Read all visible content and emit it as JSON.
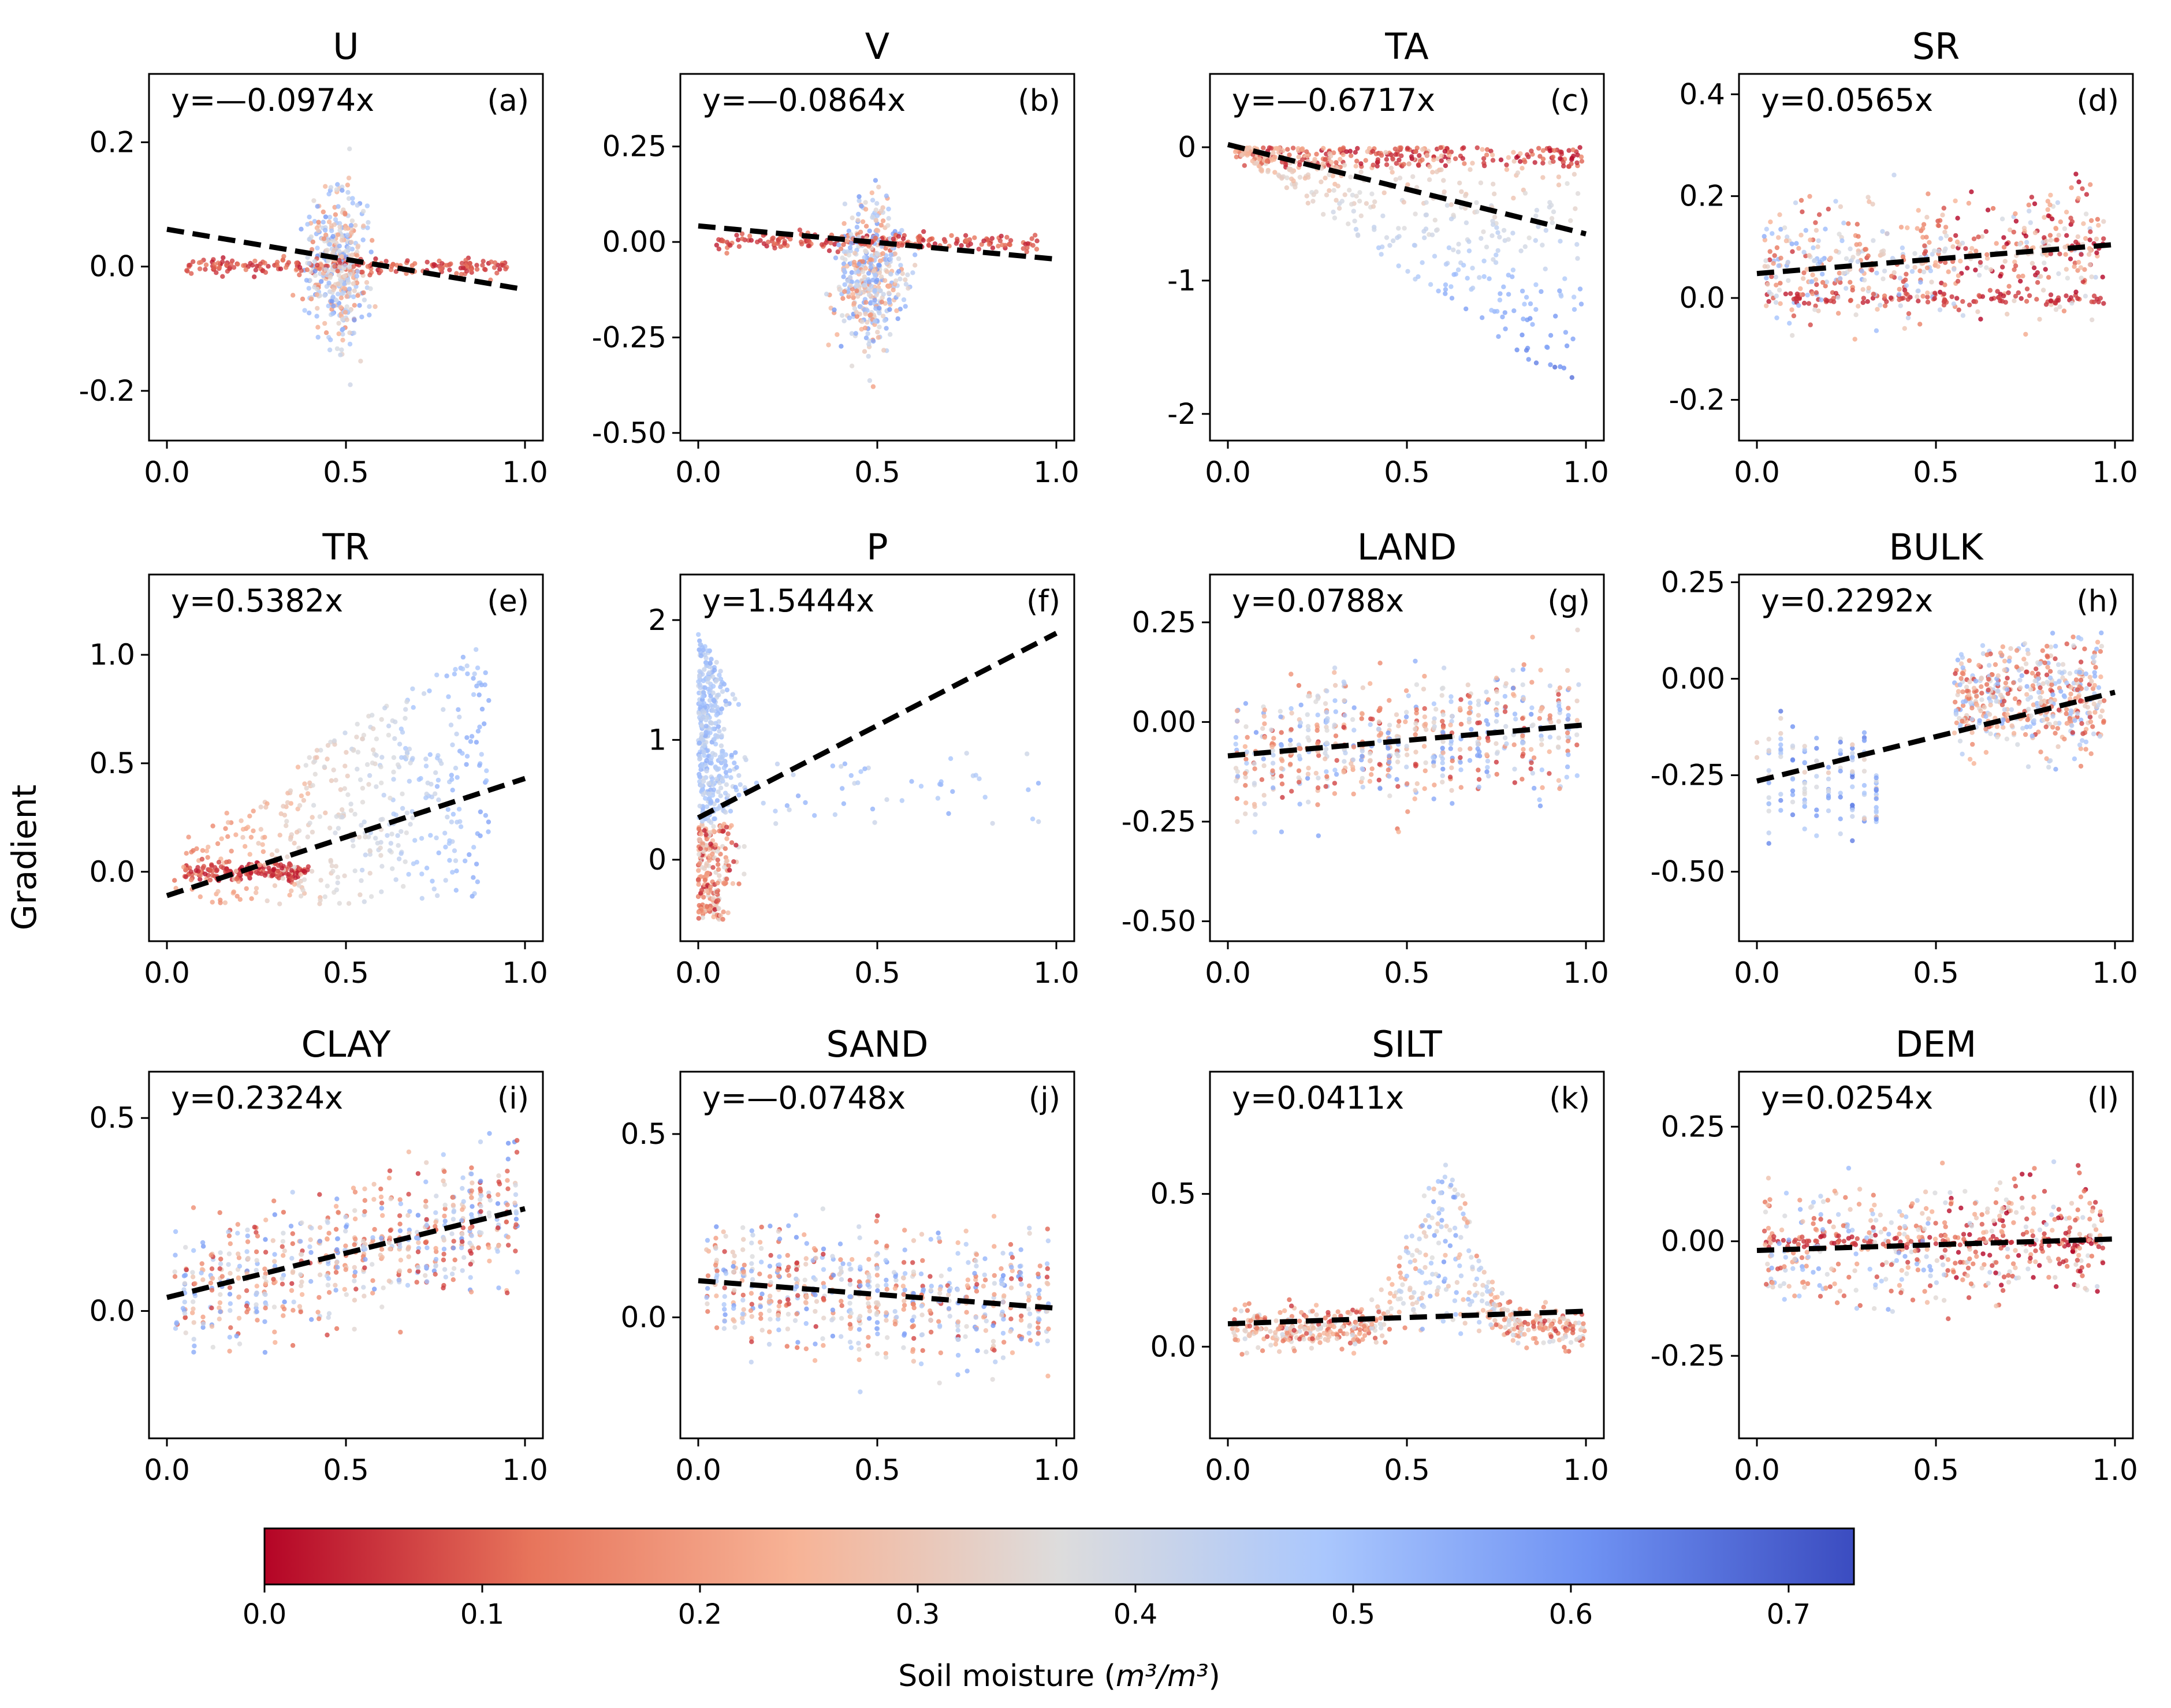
{
  "chart_data": {
    "type": "scatter",
    "shared_ylabel": "Gradient",
    "colorbar": {
      "label_prefix": "Soil moisture (",
      "label_unit": "m³/m³",
      "label_suffix": ")",
      "range": [
        0.0,
        0.73
      ],
      "ticks": [
        "0.0",
        "0.1",
        "0.2",
        "0.3",
        "0.4",
        "0.5",
        "0.6",
        "0.7"
      ],
      "tick_values": [
        0.0,
        0.1,
        0.2,
        0.3,
        0.4,
        0.5,
        0.6,
        0.7
      ],
      "colormap": "coolwarm_r",
      "colors": [
        "#b40426",
        "#e7745b",
        "#f7b396",
        "#dddcdc",
        "#aac7fd",
        "#6f92f3",
        "#3b4cc0"
      ]
    },
    "regression_line_color": "#000000",
    "panels": [
      {
        "title": "U",
        "letter": "(a)",
        "equation": "y=—0.0974x",
        "slope": -0.0974,
        "line": [
          [
            0.0,
            0.06
          ],
          [
            1.0,
            -0.037
          ]
        ],
        "ylim": [
          -0.28,
          0.31
        ],
        "yticks": [
          -0.2,
          0.0,
          0.2
        ],
        "ytick_labels": [
          "-0.2",
          "0.0",
          "0.2"
        ],
        "xlim": [
          -0.05,
          1.05
        ],
        "xticks": [
          0.0,
          0.5,
          1.0
        ],
        "xtick_labels": [
          "0.0",
          "0.5",
          "1.0"
        ],
        "cloud": "diamond"
      },
      {
        "title": "V",
        "letter": "(b)",
        "equation": "y=—0.0864x",
        "slope": -0.0864,
        "line": [
          [
            0.0,
            0.042
          ],
          [
            1.0,
            -0.045
          ]
        ],
        "ylim": [
          -0.52,
          0.44
        ],
        "yticks": [
          -0.5,
          -0.25,
          0.0,
          0.25
        ],
        "ytick_labels": [
          "-0.50",
          "-0.25",
          "0.00",
          "0.25"
        ],
        "xlim": [
          -0.05,
          1.05
        ],
        "xticks": [
          0.0,
          0.5,
          1.0
        ],
        "xtick_labels": [
          "0.0",
          "0.5",
          "1.0"
        ],
        "cloud": "diamond"
      },
      {
        "title": "TA",
        "letter": "(c)",
        "equation": "y=—0.6717x",
        "slope": -0.6717,
        "line": [
          [
            0.0,
            0.02
          ],
          [
            1.0,
            -0.65
          ]
        ],
        "ylim": [
          -2.2,
          0.55
        ],
        "yticks": [
          -2,
          -1,
          0
        ],
        "ytick_labels": [
          "-2",
          "-1",
          "0"
        ],
        "xlim": [
          -0.05,
          1.05
        ],
        "xticks": [
          0.0,
          0.5,
          1.0
        ],
        "xtick_labels": [
          "0.0",
          "0.5",
          "1.0"
        ],
        "cloud": "triangle"
      },
      {
        "title": "SR",
        "letter": "(d)",
        "equation": "y=0.0565x",
        "slope": 0.0565,
        "line": [
          [
            0.0,
            0.048
          ],
          [
            1.0,
            0.105
          ]
        ],
        "ylim": [
          -0.28,
          0.44
        ],
        "yticks": [
          -0.2,
          0.0,
          0.2,
          0.4
        ],
        "ytick_labels": [
          "-0.2",
          "0.0",
          "0.2",
          "0.4"
        ],
        "xlim": [
          -0.05,
          1.05
        ],
        "xticks": [
          0.0,
          0.5,
          1.0
        ],
        "xtick_labels": [
          "0.0",
          "0.5",
          "1.0"
        ],
        "cloud": "band"
      },
      {
        "title": "TR",
        "letter": "(e)",
        "equation": "y=0.5382x",
        "slope": 0.5382,
        "line": [
          [
            0.0,
            -0.11
          ],
          [
            1.0,
            0.43
          ]
        ],
        "ylim": [
          -0.32,
          1.37
        ],
        "yticks": [
          0.0,
          0.5,
          1.0
        ],
        "ytick_labels": [
          "0.0",
          "0.5",
          "1.0"
        ],
        "xlim": [
          -0.05,
          1.05
        ],
        "xticks": [
          0.0,
          0.5,
          1.0
        ],
        "xtick_labels": [
          "0.0",
          "0.5",
          "1.0"
        ],
        "cloud": "fan"
      },
      {
        "title": "P",
        "letter": "(f)",
        "equation": "y=1.5444x",
        "slope": 1.5444,
        "line": [
          [
            0.0,
            0.35
          ],
          [
            1.0,
            1.89
          ]
        ],
        "ylim": [
          -0.68,
          2.38
        ],
        "yticks": [
          0,
          1,
          2
        ],
        "ytick_labels": [
          "0",
          "1",
          "2"
        ],
        "xlim": [
          -0.05,
          1.05
        ],
        "xticks": [
          0.0,
          0.5,
          1.0
        ],
        "xtick_labels": [
          "0.0",
          "0.5",
          "1.0"
        ],
        "cloud": "left"
      },
      {
        "title": "LAND",
        "letter": "(g)",
        "equation": "y=0.0788x",
        "slope": 0.0788,
        "line": [
          [
            0.0,
            -0.085
          ],
          [
            1.0,
            -0.007
          ]
        ],
        "ylim": [
          -0.55,
          0.37
        ],
        "yticks": [
          -0.5,
          -0.25,
          0.0,
          0.25
        ],
        "ytick_labels": [
          "-0.50",
          "-0.25",
          "0.00",
          "0.25"
        ],
        "xlim": [
          -0.05,
          1.05
        ],
        "xticks": [
          0.0,
          0.5,
          1.0
        ],
        "xtick_labels": [
          "0.0",
          "0.5",
          "1.0"
        ],
        "cloud": "vertical"
      },
      {
        "title": "BULK",
        "letter": "(h)",
        "equation": "y=0.2292x",
        "slope": 0.2292,
        "line": [
          [
            0.0,
            -0.265
          ],
          [
            1.0,
            -0.035
          ]
        ],
        "ylim": [
          -0.68,
          0.27
        ],
        "yticks": [
          -0.5,
          -0.25,
          0.0,
          0.25
        ],
        "ytick_labels": [
          "-0.50",
          "-0.25",
          "0.00",
          "0.25"
        ],
        "xlim": [
          -0.05,
          1.05
        ],
        "xticks": [
          0.0,
          0.5,
          1.0
        ],
        "xtick_labels": [
          "0.0",
          "0.5",
          "1.0"
        ],
        "cloud": "bulk"
      },
      {
        "title": "CLAY",
        "letter": "(i)",
        "equation": "y=0.2324x",
        "slope": 0.2324,
        "line": [
          [
            0.0,
            0.035
          ],
          [
            1.0,
            0.265
          ]
        ],
        "ylim": [
          -0.33,
          0.62
        ],
        "yticks": [
          0.0,
          0.5
        ],
        "ytick_labels": [
          "0.0",
          "0.5"
        ],
        "xlim": [
          -0.05,
          1.05
        ],
        "xticks": [
          0.0,
          0.5,
          1.0
        ],
        "xtick_labels": [
          "0.0",
          "0.5",
          "1.0"
        ],
        "cloud": "vertical"
      },
      {
        "title": "SAND",
        "letter": "(j)",
        "equation": "y=—0.0748x",
        "slope": -0.0748,
        "line": [
          [
            0.0,
            0.1
          ],
          [
            1.0,
            0.025
          ]
        ],
        "ylim": [
          -0.33,
          0.67
        ],
        "yticks": [
          0.0,
          0.5
        ],
        "ytick_labels": [
          "0.0",
          "0.5"
        ],
        "xlim": [
          -0.05,
          1.05
        ],
        "xticks": [
          0.0,
          0.5,
          1.0
        ],
        "xtick_labels": [
          "0.0",
          "0.5",
          "1.0"
        ],
        "cloud": "vertical"
      },
      {
        "title": "SILT",
        "letter": "(k)",
        "equation": "y=0.0411x",
        "slope": 0.0411,
        "line": [
          [
            0.0,
            0.075
          ],
          [
            1.0,
            0.116
          ]
        ],
        "ylim": [
          -0.3,
          0.9
        ],
        "yticks": [
          0.0,
          0.5
        ],
        "ytick_labels": [
          "0.0",
          "0.5"
        ],
        "xlim": [
          -0.05,
          1.05
        ],
        "xticks": [
          0.0,
          0.5,
          1.0
        ],
        "xtick_labels": [
          "0.0",
          "0.5",
          "1.0"
        ],
        "cloud": "silt"
      },
      {
        "title": "DEM",
        "letter": "(l)",
        "equation": "y=0.0254x",
        "slope": 0.0254,
        "line": [
          [
            0.0,
            -0.02
          ],
          [
            1.0,
            0.005
          ]
        ],
        "ylim": [
          -0.43,
          0.37
        ],
        "yticks": [
          -0.25,
          0.0,
          0.25
        ],
        "ytick_labels": [
          "-0.25",
          "0.00",
          "0.25"
        ],
        "xlim": [
          -0.05,
          1.05
        ],
        "xticks": [
          0.0,
          0.5,
          1.0
        ],
        "xtick_labels": [
          "0.0",
          "0.5",
          "1.0"
        ],
        "cloud": "band"
      }
    ]
  }
}
